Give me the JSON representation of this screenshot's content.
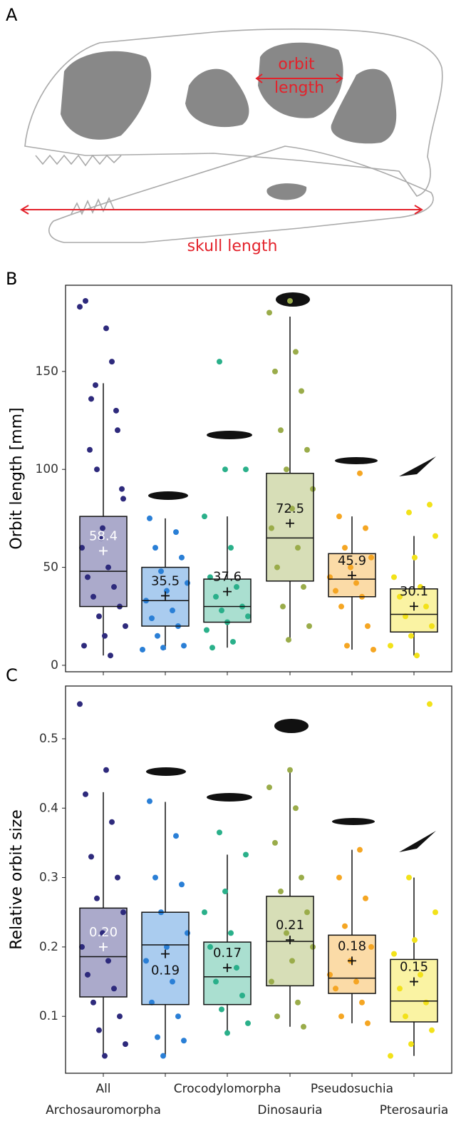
{
  "diagram": {
    "panel": "A",
    "annotations": {
      "orbit": "orbit",
      "length": "length",
      "skull": "skull length"
    }
  },
  "chart_data": [
    {
      "type": "box",
      "panel": "B",
      "ylabel": "Orbit length [mm]",
      "ylim": [
        -3.3,
        194
      ],
      "yticks": [
        0,
        50,
        100,
        150
      ],
      "colors": [
        "#2e2a7c",
        "#2a7fd6",
        "#2ab08a",
        "#9aac4a",
        "#f5a623",
        "#f2e21a"
      ],
      "boxes": [
        {
          "whislo": 5,
          "q1": 30,
          "med": 48,
          "q3": 76,
          "whishi": 144,
          "mean": 58.4,
          "points": [
            183,
            172,
            186,
            155,
            136,
            120,
            100,
            85,
            70,
            60,
            50,
            45,
            40,
            35,
            30,
            25,
            20,
            15,
            10,
            5,
            110,
            130,
            143,
            90,
            65
          ]
        },
        {
          "whislo": 8,
          "q1": 20,
          "med": 33,
          "q3": 50,
          "whishi": 75,
          "mean": 35.5,
          "points": [
            75,
            68,
            60,
            55,
            48,
            42,
            38,
            33,
            28,
            24,
            20,
            15,
            10,
            9,
            8
          ]
        },
        {
          "whislo": 9,
          "q1": 22,
          "med": 30,
          "q3": 44,
          "whishi": 76,
          "mean": 37.6,
          "points": [
            155,
            100,
            100,
            76,
            60,
            45,
            40,
            35,
            30,
            28,
            25,
            22,
            18,
            12,
            9
          ]
        },
        {
          "whislo": 13,
          "q1": 43,
          "med": 65,
          "q3": 98,
          "whishi": 178,
          "mean": 72.5,
          "points": [
            186,
            180,
            160,
            150,
            140,
            120,
            110,
            100,
            90,
            80,
            70,
            60,
            50,
            40,
            30,
            20,
            13
          ]
        },
        {
          "whislo": 8,
          "q1": 35,
          "med": 44,
          "q3": 57,
          "whishi": 76,
          "mean": 45.9,
          "points": [
            98,
            76,
            70,
            60,
            55,
            50,
            45,
            42,
            38,
            35,
            30,
            20,
            10,
            8
          ]
        },
        {
          "whislo": 5,
          "q1": 17,
          "med": 26,
          "q3": 39,
          "whishi": 66,
          "mean": 30.1,
          "points": [
            82,
            78,
            66,
            55,
            45,
            40,
            35,
            30,
            25,
            20,
            15,
            10,
            5
          ]
        }
      ]
    },
    {
      "type": "box",
      "panel": "C",
      "ylabel": "Relative orbit size",
      "ylim": [
        0.018,
        0.576
      ],
      "yticks": [
        0.1,
        0.2,
        0.3,
        0.4,
        0.5
      ],
      "categories": [
        "All Archosauromorpha",
        null,
        "Crocodylomorpha",
        "Dinosauria",
        "Pseudosuchia",
        "Pterosauria"
      ],
      "colors": [
        "#2e2a7c",
        "#2a7fd6",
        "#2ab08a",
        "#9aac4a",
        "#f5a623",
        "#f2e21a"
      ],
      "boxes": [
        {
          "whislo": 0.043,
          "q1": 0.128,
          "med": 0.186,
          "q3": 0.256,
          "whishi": 0.423,
          "mean": 0.2,
          "mean_label": "0.20",
          "points": [
            0.55,
            0.455,
            0.42,
            0.38,
            0.33,
            0.3,
            0.27,
            0.25,
            0.22,
            0.2,
            0.18,
            0.16,
            0.14,
            0.12,
            0.1,
            0.08,
            0.06,
            0.043
          ]
        },
        {
          "whislo": 0.043,
          "q1": 0.117,
          "med": 0.203,
          "q3": 0.25,
          "whishi": 0.409,
          "mean": 0.19,
          "points": [
            0.41,
            0.36,
            0.3,
            0.29,
            0.25,
            0.22,
            0.2,
            0.18,
            0.15,
            0.12,
            0.1,
            0.07,
            0.065,
            0.043
          ]
        },
        {
          "whislo": 0.076,
          "q1": 0.117,
          "med": 0.157,
          "q3": 0.207,
          "whishi": 0.333,
          "mean": 0.17,
          "points": [
            0.365,
            0.333,
            0.28,
            0.25,
            0.22,
            0.2,
            0.17,
            0.15,
            0.13,
            0.11,
            0.09,
            0.076
          ]
        },
        {
          "whislo": 0.085,
          "q1": 0.144,
          "med": 0.208,
          "q3": 0.273,
          "whishi": 0.455,
          "mean": 0.21,
          "points": [
            0.455,
            0.43,
            0.4,
            0.35,
            0.3,
            0.28,
            0.25,
            0.22,
            0.2,
            0.18,
            0.15,
            0.12,
            0.1,
            0.085
          ]
        },
        {
          "whislo": 0.09,
          "q1": 0.133,
          "med": 0.155,
          "q3": 0.217,
          "whishi": 0.34,
          "mean": 0.18,
          "points": [
            0.34,
            0.3,
            0.27,
            0.23,
            0.2,
            0.18,
            0.16,
            0.15,
            0.14,
            0.12,
            0.1,
            0.09
          ]
        },
        {
          "whislo": 0.043,
          "q1": 0.092,
          "med": 0.122,
          "q3": 0.182,
          "whishi": 0.3,
          "mean": 0.15,
          "points": [
            0.55,
            0.3,
            0.25,
            0.21,
            0.19,
            0.16,
            0.14,
            0.12,
            0.1,
            0.08,
            0.06,
            0.043
          ]
        }
      ]
    }
  ]
}
